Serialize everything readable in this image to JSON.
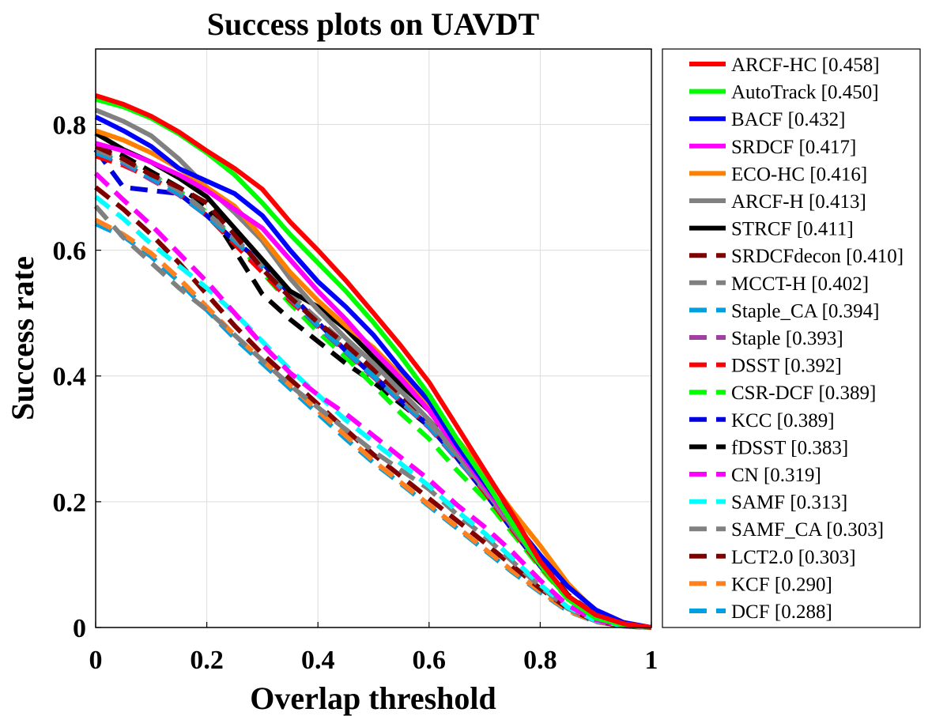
{
  "chart_data": {
    "type": "line",
    "title": "Success plots on UAVDT",
    "xlabel": "Overlap threshold",
    "ylabel": "Success rate",
    "xlim": [
      0,
      1
    ],
    "ylim": [
      0,
      0.92
    ],
    "xticks": [
      "0",
      "0.2",
      "0.4",
      "0.6",
      "0.8",
      "1"
    ],
    "yticks": [
      "0",
      "0.2",
      "0.4",
      "0.6",
      "0.8"
    ],
    "grid": true,
    "legend_position": "outside-right",
    "x": [
      0,
      0.05,
      0.1,
      0.15,
      0.2,
      0.25,
      0.3,
      0.35,
      0.4,
      0.45,
      0.5,
      0.55,
      0.6,
      0.65,
      0.7,
      0.75,
      0.8,
      0.85,
      0.9,
      0.95,
      1.0
    ],
    "series": [
      {
        "name": "ARCF-HC",
        "score": "[0.458]",
        "color": "#ff0000",
        "dash": "solid",
        "values": [
          0.846,
          0.832,
          0.813,
          0.788,
          0.758,
          0.73,
          0.697,
          0.645,
          0.6,
          0.552,
          0.5,
          0.447,
          0.39,
          0.32,
          0.25,
          0.18,
          0.105,
          0.05,
          0.02,
          0.006,
          0.0
        ]
      },
      {
        "name": "AutoTrack",
        "score": "[0.450]",
        "color": "#00ff00",
        "dash": "solid",
        "values": [
          0.84,
          0.828,
          0.81,
          0.785,
          0.755,
          0.72,
          0.675,
          0.625,
          0.58,
          0.535,
          0.485,
          0.43,
          0.37,
          0.3,
          0.235,
          0.165,
          0.1,
          0.045,
          0.015,
          0.004,
          0.0
        ]
      },
      {
        "name": "BACF",
        "score": "[0.432]",
        "color": "#0000ff",
        "dash": "solid",
        "values": [
          0.812,
          0.79,
          0.765,
          0.73,
          0.71,
          0.69,
          0.655,
          0.6,
          0.55,
          0.51,
          0.465,
          0.41,
          0.36,
          0.29,
          0.23,
          0.17,
          0.115,
          0.065,
          0.028,
          0.008,
          0.0
        ]
      },
      {
        "name": "SRDCF",
        "score": "[0.417]",
        "color": "#ff00ff",
        "dash": "solid",
        "values": [
          0.77,
          0.758,
          0.74,
          0.72,
          0.695,
          0.665,
          0.635,
          0.585,
          0.535,
          0.49,
          0.44,
          0.395,
          0.345,
          0.285,
          0.225,
          0.165,
          0.105,
          0.05,
          0.02,
          0.005,
          0.0
        ]
      },
      {
        "name": "ECO-HC",
        "score": "[0.416]",
        "color": "#ff8000",
        "dash": "solid",
        "values": [
          0.79,
          0.775,
          0.755,
          0.73,
          0.7,
          0.67,
          0.62,
          0.565,
          0.52,
          0.48,
          0.445,
          0.4,
          0.355,
          0.3,
          0.245,
          0.185,
          0.13,
          0.07,
          0.025,
          0.006,
          0.0
        ]
      },
      {
        "name": "ARCF-H",
        "score": "[0.413]",
        "color": "#808080",
        "dash": "solid",
        "values": [
          0.823,
          0.805,
          0.782,
          0.745,
          0.7,
          0.66,
          0.615,
          0.555,
          0.505,
          0.46,
          0.42,
          0.375,
          0.33,
          0.275,
          0.22,
          0.16,
          0.1,
          0.048,
          0.018,
          0.004,
          0.0
        ]
      },
      {
        "name": "STRCF",
        "score": "[0.411]",
        "color": "#000000",
        "dash": "solid",
        "values": [
          0.786,
          0.76,
          0.74,
          0.715,
          0.685,
          0.635,
          0.585,
          0.535,
          0.51,
          0.475,
          0.43,
          0.385,
          0.345,
          0.285,
          0.225,
          0.165,
          0.105,
          0.05,
          0.02,
          0.005,
          0.0
        ]
      },
      {
        "name": "SRDCFdecon",
        "score": "[0.410]",
        "color": "#800000",
        "dash": "dashed",
        "values": [
          0.765,
          0.745,
          0.72,
          0.7,
          0.675,
          0.625,
          0.57,
          0.525,
          0.485,
          0.45,
          0.41,
          0.37,
          0.33,
          0.28,
          0.23,
          0.17,
          0.11,
          0.052,
          0.02,
          0.005,
          0.0
        ]
      },
      {
        "name": "MCCT-H",
        "score": "[0.402]",
        "color": "#808080",
        "dash": "dashed",
        "values": [
          0.76,
          0.742,
          0.72,
          0.695,
          0.66,
          0.62,
          0.575,
          0.53,
          0.49,
          0.45,
          0.41,
          0.365,
          0.325,
          0.275,
          0.225,
          0.165,
          0.105,
          0.05,
          0.018,
          0.004,
          0.0
        ]
      },
      {
        "name": "Staple_CA",
        "score": "[0.394]",
        "color": "#00a0e0",
        "dash": "dashed",
        "values": [
          0.755,
          0.74,
          0.715,
          0.69,
          0.655,
          0.615,
          0.575,
          0.525,
          0.48,
          0.44,
          0.4,
          0.36,
          0.32,
          0.27,
          0.22,
          0.16,
          0.1,
          0.048,
          0.017,
          0.004,
          0.0
        ]
      },
      {
        "name": "Staple",
        "score": "[0.393]",
        "color": "#a040a0",
        "dash": "dashed",
        "values": [
          0.755,
          0.738,
          0.712,
          0.688,
          0.655,
          0.615,
          0.572,
          0.523,
          0.478,
          0.438,
          0.398,
          0.358,
          0.318,
          0.268,
          0.218,
          0.158,
          0.1,
          0.048,
          0.017,
          0.004,
          0.0
        ]
      },
      {
        "name": "DSST",
        "score": "[0.392]",
        "color": "#ff0000",
        "dash": "dashed",
        "values": [
          0.75,
          0.735,
          0.715,
          0.69,
          0.655,
          0.61,
          0.565,
          0.52,
          0.48,
          0.44,
          0.4,
          0.36,
          0.32,
          0.27,
          0.215,
          0.155,
          0.098,
          0.046,
          0.016,
          0.004,
          0.0
        ]
      },
      {
        "name": "CSR-DCF",
        "score": "[0.389]",
        "color": "#00ff00",
        "dash": "dashed",
        "values": [
          0.755,
          0.74,
          0.72,
          0.695,
          0.66,
          0.615,
          0.565,
          0.515,
          0.47,
          0.43,
          0.385,
          0.34,
          0.3,
          0.25,
          0.205,
          0.15,
          0.095,
          0.045,
          0.016,
          0.004,
          0.0
        ]
      },
      {
        "name": "KCC",
        "score": "[0.389]",
        "color": "#0000dd",
        "dash": "dashed",
        "values": [
          0.76,
          0.7,
          0.695,
          0.69,
          0.655,
          0.615,
          0.58,
          0.53,
          0.485,
          0.44,
          0.4,
          0.36,
          0.32,
          0.27,
          0.215,
          0.155,
          0.098,
          0.046,
          0.016,
          0.004,
          0.0
        ]
      },
      {
        "name": "fDSST",
        "score": "[0.383]",
        "color": "#000000",
        "dash": "dashed",
        "values": [
          0.77,
          0.75,
          0.725,
          0.7,
          0.67,
          0.6,
          0.53,
          0.49,
          0.455,
          0.42,
          0.39,
          0.355,
          0.32,
          0.27,
          0.215,
          0.155,
          0.098,
          0.046,
          0.016,
          0.004,
          0.0
        ]
      },
      {
        "name": "CN",
        "score": "[0.319]",
        "color": "#ff00ff",
        "dash": "dashed",
        "values": [
          0.722,
          0.68,
          0.64,
          0.595,
          0.55,
          0.5,
          0.45,
          0.405,
          0.37,
          0.34,
          0.305,
          0.27,
          0.235,
          0.195,
          0.16,
          0.12,
          0.075,
          0.035,
          0.012,
          0.003,
          0.0
        ]
      },
      {
        "name": "SAMF",
        "score": "[0.313]",
        "color": "#00ffff",
        "dash": "dashed",
        "values": [
          0.685,
          0.65,
          0.61,
          0.575,
          0.54,
          0.5,
          0.455,
          0.41,
          0.37,
          0.33,
          0.295,
          0.26,
          0.225,
          0.185,
          0.15,
          0.11,
          0.068,
          0.032,
          0.011,
          0.003,
          0.0
        ]
      },
      {
        "name": "SAMF_CA",
        "score": "[0.303]",
        "color": "#808080",
        "dash": "dashed",
        "values": [
          0.67,
          0.62,
          0.58,
          0.54,
          0.505,
          0.465,
          0.425,
          0.385,
          0.35,
          0.315,
          0.28,
          0.25,
          0.22,
          0.18,
          0.145,
          0.105,
          0.065,
          0.03,
          0.01,
          0.002,
          0.0
        ]
      },
      {
        "name": "LCT2.0",
        "score": "[0.303]",
        "color": "#800000",
        "dash": "dashed",
        "values": [
          0.7,
          0.665,
          0.625,
          0.58,
          0.53,
          0.48,
          0.435,
          0.395,
          0.355,
          0.315,
          0.275,
          0.24,
          0.205,
          0.17,
          0.135,
          0.098,
          0.062,
          0.03,
          0.01,
          0.002,
          0.0
        ]
      },
      {
        "name": "KCF",
        "score": "[0.290]",
        "color": "#ff8020",
        "dash": "dashed",
        "values": [
          0.648,
          0.625,
          0.595,
          0.555,
          0.51,
          0.465,
          0.425,
          0.385,
          0.345,
          0.305,
          0.265,
          0.23,
          0.195,
          0.16,
          0.125,
          0.09,
          0.058,
          0.027,
          0.009,
          0.002,
          0.0
        ]
      },
      {
        "name": "DCF",
        "score": "[0.288]",
        "color": "#00a0e0",
        "dash": "dashed",
        "values": [
          0.642,
          0.622,
          0.59,
          0.55,
          0.505,
          0.46,
          0.42,
          0.38,
          0.34,
          0.3,
          0.262,
          0.228,
          0.193,
          0.158,
          0.123,
          0.088,
          0.056,
          0.026,
          0.009,
          0.002,
          0.0
        ]
      }
    ]
  }
}
